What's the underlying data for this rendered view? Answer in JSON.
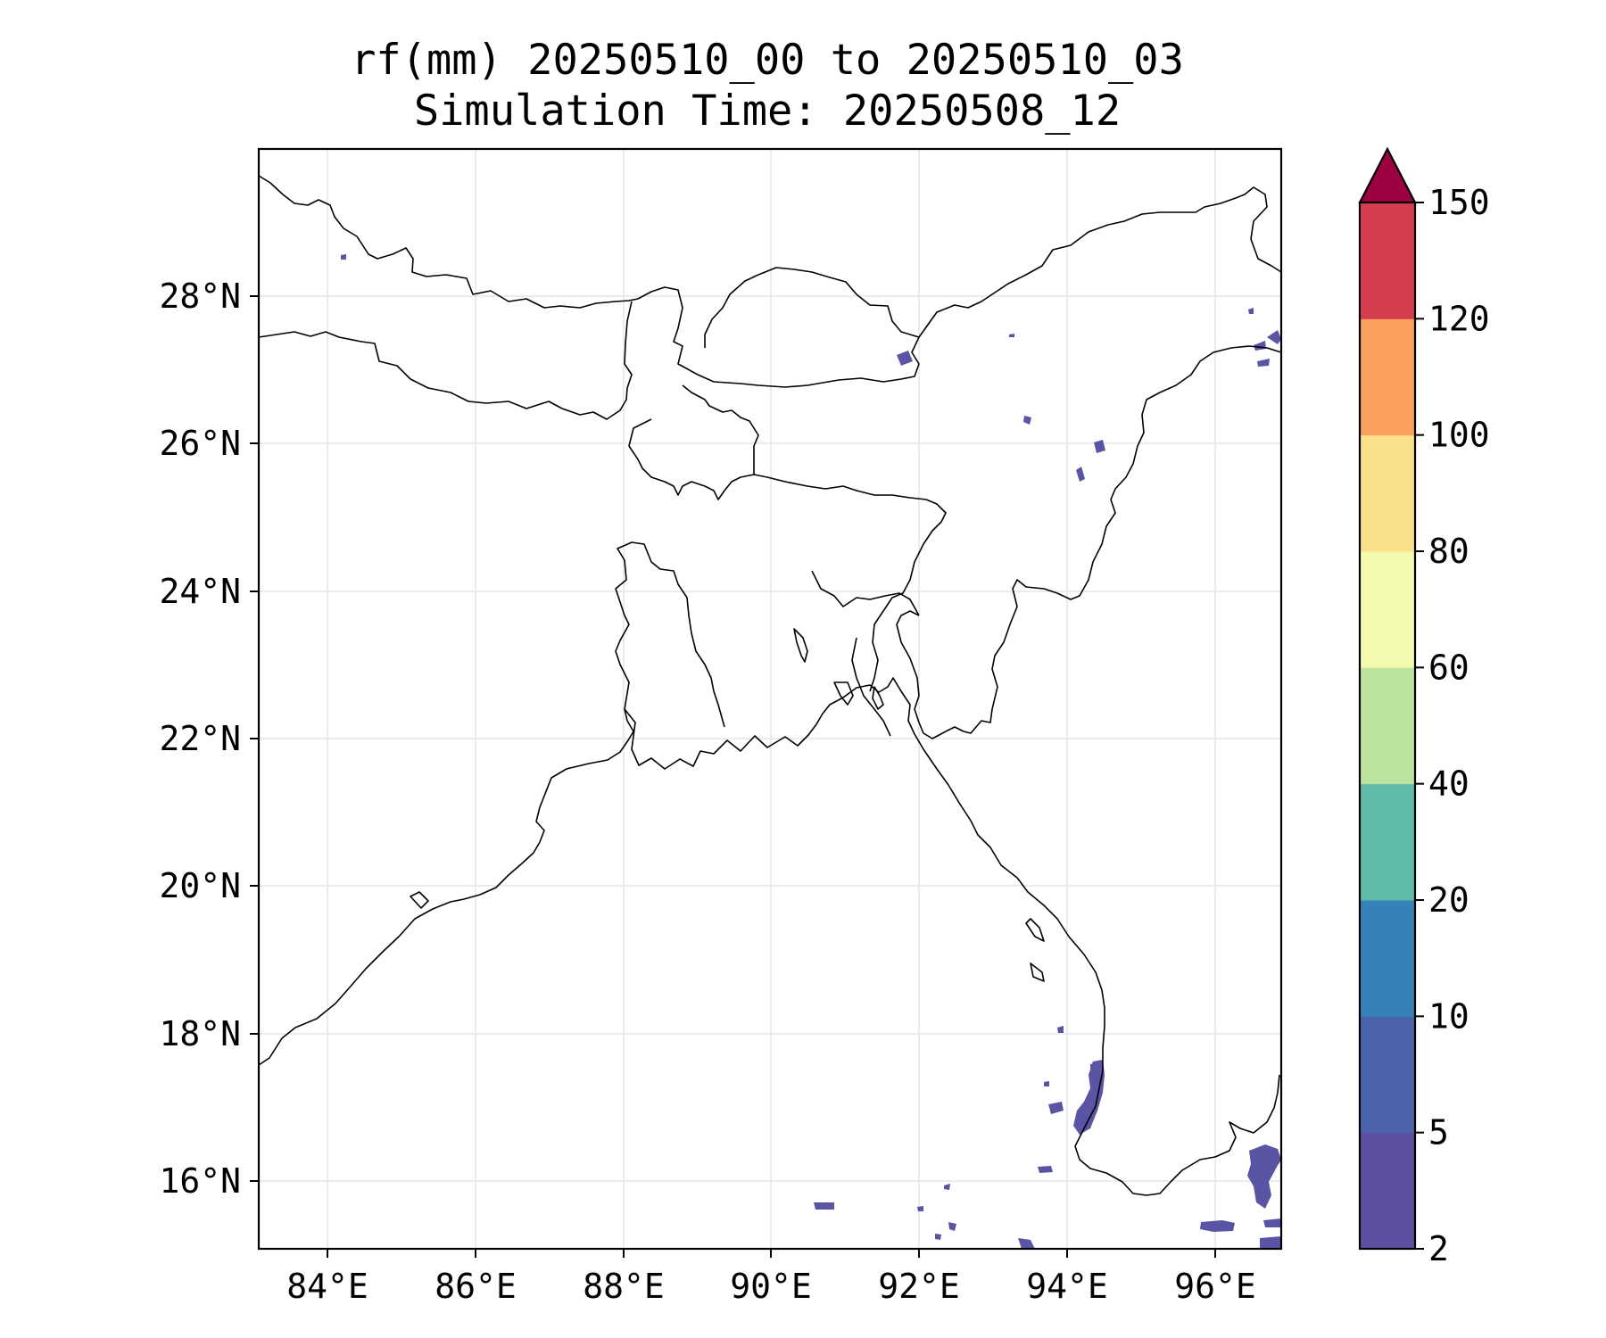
{
  "title_line1": "rf(mm) 20250510_00 to 20250510_03",
  "title_line2": "Simulation Time: 20250508_12",
  "map": {
    "lon_range": [
      83.1,
      96.9
    ],
    "lat_range": [
      15.0,
      29.9
    ],
    "lon_ticks": [
      "84°E",
      "86°E",
      "88°E",
      "90°E",
      "92°E",
      "94°E",
      "96°E"
    ],
    "lat_ticks": [
      "28°N",
      "26°N",
      "24°N",
      "22°N",
      "20°N",
      "18°N",
      "16°N"
    ],
    "gridlines": true
  },
  "colorbar": {
    "levels": [
      "2",
      "5",
      "10",
      "20",
      "40",
      "60",
      "80",
      "100",
      "120",
      "150"
    ],
    "colors": [
      "#5e4fa2",
      "#4b63ad",
      "#3781bb",
      "#5fbaa8",
      "#bde3a0",
      "#f4faad",
      "#fbe08b",
      "#f8a05c",
      "#d53e4f"
    ],
    "extend_color": "#9e0142",
    "extend": "max"
  },
  "rain_color": "#5a54a4"
}
